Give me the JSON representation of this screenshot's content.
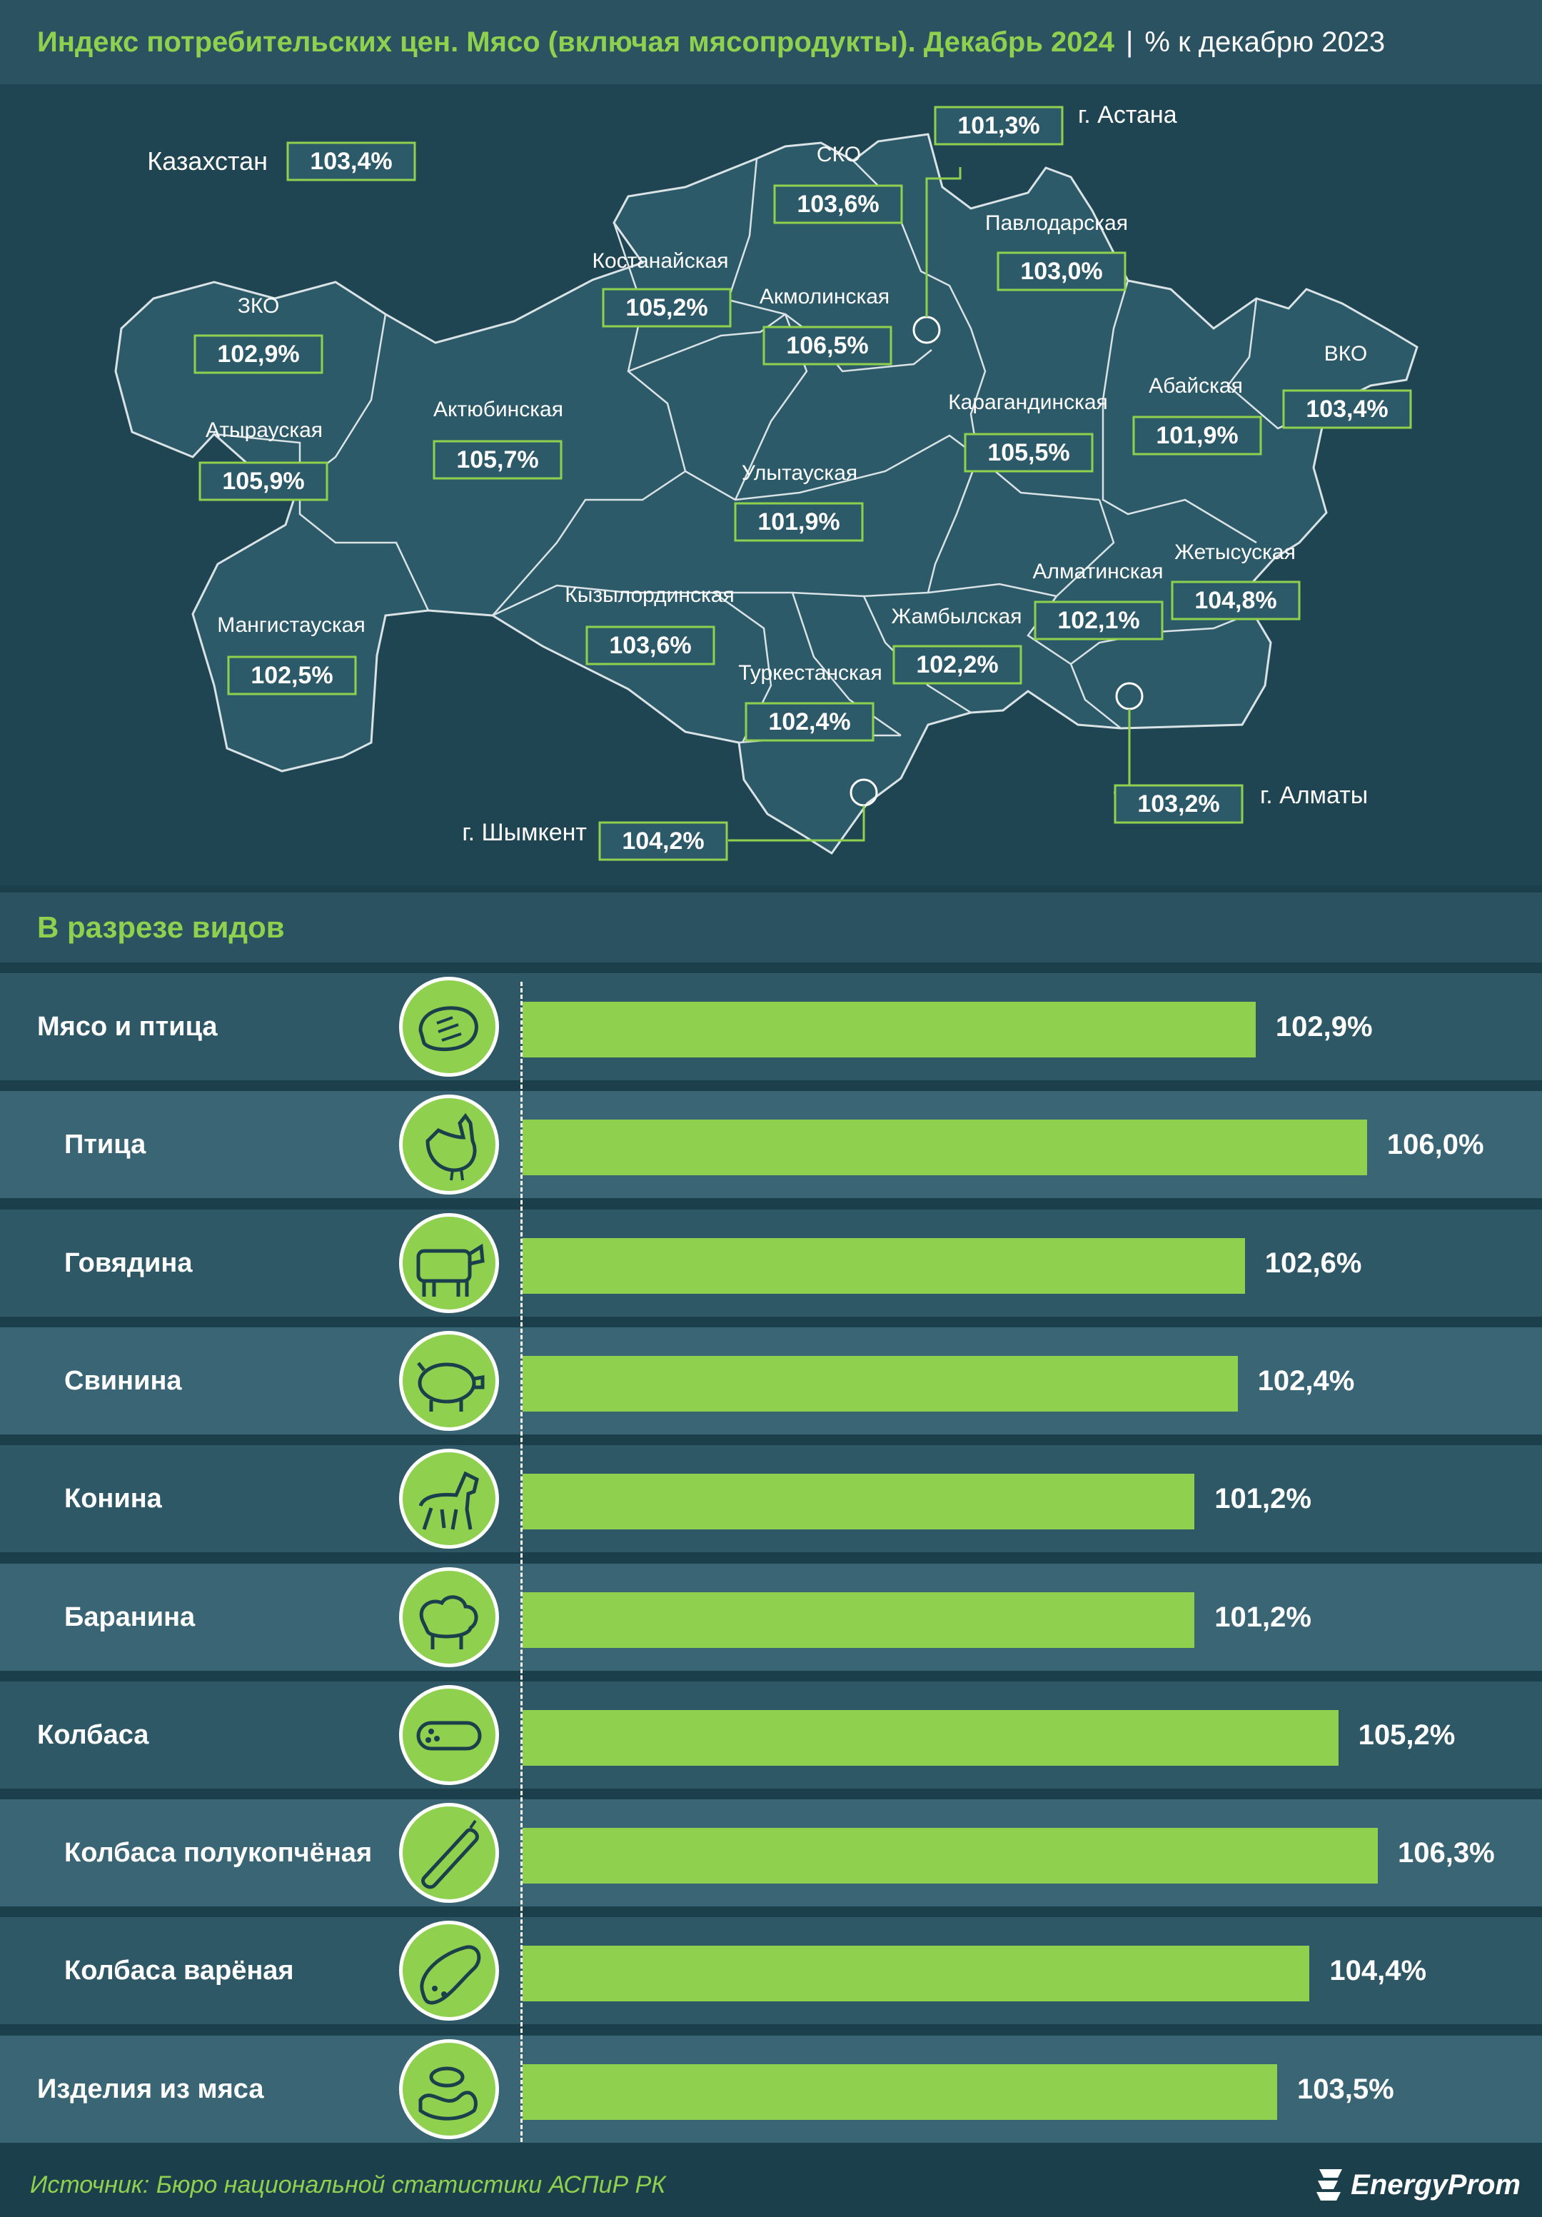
{
  "header": {
    "title": "Индекс потребительских цен. Мясо (включая мясопродукты). Декабрь 2024",
    "separator": "|",
    "subtitle": "% к декабрю 2023"
  },
  "map": {
    "country": {
      "label": "Казахстан",
      "value": "103,4%"
    },
    "regions": [
      {
        "name": "СКО",
        "value": "103,6%"
      },
      {
        "name": "Павлодарская",
        "value": "103,0%"
      },
      {
        "name": "Костанайская",
        "value": "105,2%"
      },
      {
        "name": "Акмолинская",
        "value": "106,5%"
      },
      {
        "name": "ЗКО",
        "value": "102,9%"
      },
      {
        "name": "ВКО",
        "value": "103,4%"
      },
      {
        "name": "Абайская",
        "value": "101,9%"
      },
      {
        "name": "Атырауская",
        "value": "105,9%"
      },
      {
        "name": "Актюбинская",
        "value": "105,7%"
      },
      {
        "name": "Карагандинская",
        "value": "105,5%"
      },
      {
        "name": "Улытауская",
        "value": "101,9%"
      },
      {
        "name": "Жетысуская",
        "value": "104,8%"
      },
      {
        "name": "Алматинская",
        "value": "102,1%"
      },
      {
        "name": "Мангистауская",
        "value": "102,5%"
      },
      {
        "name": "Кызылординская",
        "value": "103,6%"
      },
      {
        "name": "Жамбылская",
        "value": "102,2%"
      },
      {
        "name": "Туркестанская",
        "value": "102,4%"
      }
    ],
    "cities": [
      {
        "name": "г. Астана",
        "value": "101,3%"
      },
      {
        "name": "г. Алматы",
        "value": "103,2%"
      },
      {
        "name": "г. Шымкент",
        "value": "104,2%"
      }
    ]
  },
  "section_title": "В разрезе видов",
  "chart_data": {
    "type": "bar",
    "orientation": "horizontal",
    "categories": [
      "Мясо и птица",
      "Птица",
      "Говядина",
      "Свинина",
      "Конина",
      "Баранина",
      "Колбаса",
      "Колбаса полукопчёная",
      "Колбаса варёная",
      "Изделия из мяса"
    ],
    "levels": [
      0,
      1,
      1,
      1,
      1,
      1,
      0,
      1,
      1,
      0
    ],
    "values": [
      102.9,
      106.0,
      102.6,
      102.4,
      101.2,
      101.2,
      105.2,
      106.3,
      104.4,
      103.5
    ],
    "value_labels": [
      "102,9%",
      "106,0%",
      "102,6%",
      "102,4%",
      "101,2%",
      "101,2%",
      "105,2%",
      "106,3%",
      "104,4%",
      "103,5%"
    ],
    "icons": [
      "steak-icon",
      "chicken-icon",
      "cow-icon",
      "pig-icon",
      "horse-icon",
      "sheep-icon",
      "sausage-icon",
      "smoked-sausage-icon",
      "boiled-sausage-icon",
      "sausage-links-icon"
    ],
    "xlim": [
      82.5,
      106.3
    ],
    "bar_color": "#8fd14f"
  },
  "colors": {
    "accent": "#8fd14f",
    "background": "#1c3f4c",
    "header": "#2b5260"
  },
  "footer": {
    "source": "Источник: Бюро национальной статистики АСПиР РК",
    "brand": "EnergyProm"
  }
}
